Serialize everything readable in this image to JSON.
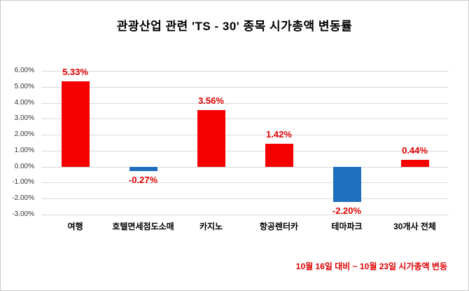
{
  "footnote": "10월 16일 대비 ~ 10월 23일 시가총액 변동",
  "colors": {
    "positive_bar": "#f40000",
    "negative_bar": "#1f6fbe",
    "label_text": "#e00000",
    "grid": "#d9d9d9"
  },
  "chart_data": {
    "type": "bar",
    "title": "관광산업 관련 'TS - 30' 종목 시가총액 변동률",
    "categories": [
      "여행",
      "호텔면세점도소매",
      "카지노",
      "항공렌터카",
      "테마파크",
      "30개사 전체"
    ],
    "values": [
      5.33,
      -0.27,
      3.56,
      1.42,
      -2.2,
      0.44
    ],
    "value_labels": [
      "5.33%",
      "-0.27%",
      "3.56%",
      "1.42%",
      "-2.20%",
      "0.44%"
    ],
    "ylim": [
      -3,
      6
    ],
    "yticks": [
      {
        "label": "6.00%",
        "value": 6
      },
      {
        "label": "5.00%",
        "value": 5
      },
      {
        "label": "4.00%",
        "value": 4
      },
      {
        "label": "3.00%",
        "value": 3
      },
      {
        "label": "2.00%",
        "value": 2
      },
      {
        "label": "1.00%",
        "value": 1
      },
      {
        "label": "0.00%",
        "value": 0
      },
      {
        "label": "-1.00%",
        "value": -1
      },
      {
        "label": "-2.00%",
        "value": -2
      },
      {
        "label": "-3.00%",
        "value": -3
      }
    ],
    "grid": true,
    "legend": "none",
    "xlabel": "",
    "ylabel": ""
  }
}
